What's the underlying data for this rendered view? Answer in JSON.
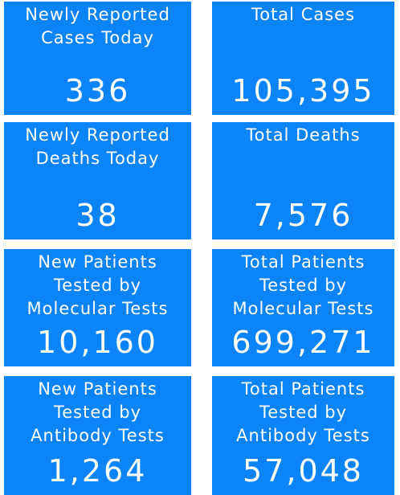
{
  "tiles": [
    {
      "label": [
        "Newly Reported",
        "Cases Today"
      ],
      "value": "336"
    },
    {
      "label": [
        "Total Cases"
      ],
      "value": "105,395"
    },
    {
      "label": [
        "Newly Reported",
        "Deaths Today"
      ],
      "value": "38"
    },
    {
      "label": [
        "Total Deaths"
      ],
      "value": "7,576"
    },
    {
      "label": [
        "New Patients",
        "Tested by",
        "Molecular Tests"
      ],
      "value": "10,160"
    },
    {
      "label": [
        "Total Patients",
        "Tested by",
        "Molecular Tests"
      ],
      "value": "699,271"
    },
    {
      "label": [
        "New Patients",
        "Tested by",
        "Antibody Tests"
      ],
      "value": "1,264"
    },
    {
      "label": [
        "Total Patients",
        "Tested by",
        "Antibody Tests"
      ],
      "value": "57,048"
    }
  ]
}
